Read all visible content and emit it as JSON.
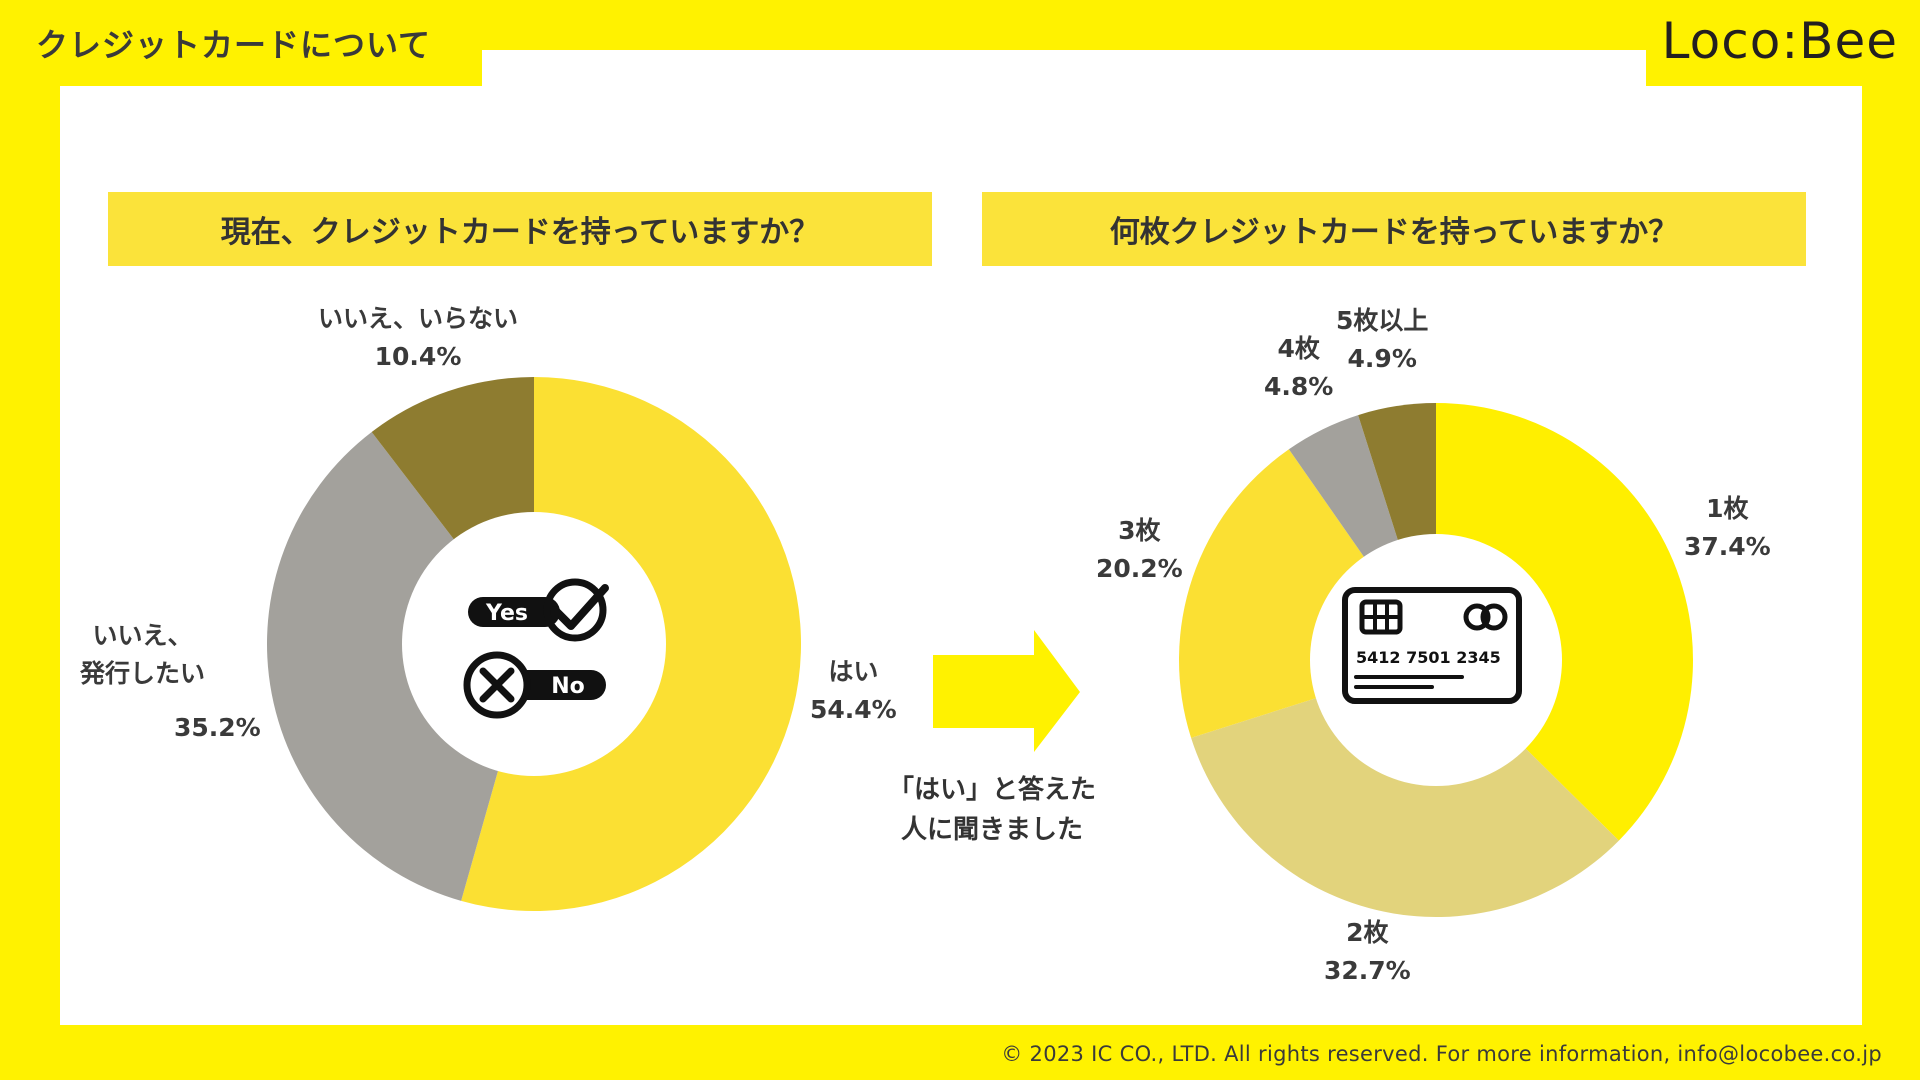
{
  "header": {
    "title": "クレジットカードについて",
    "logo_text": "Loco:Bee"
  },
  "footer": {
    "copyright": "© 2023 IC CO., LTD. All rights reserved. For more information, info@locobee.co.jp"
  },
  "arrow_note": {
    "line1": "「はい」と答えた",
    "line2": "人に聞きました"
  },
  "icons": {
    "yes_text": "Yes",
    "no_text": "No",
    "card_number": "5412  7501  2345"
  },
  "colors": {
    "background": "#FFF200",
    "yes": "#FBE033",
    "no_want": "#A3A19C",
    "no_need": "#8E7C30",
    "one": "#FFEF00",
    "two": "#E2D37C",
    "three": "#FBE033",
    "four": "#A3A19C",
    "five_plus": "#8E7C30"
  },
  "chart_data": [
    {
      "type": "pie",
      "title": "現在、クレジットカードを持っていますか？",
      "series": [
        {
          "label": "はい",
          "value": 54.4,
          "value_label": "54.4%"
        },
        {
          "label": "いいえ、発行したい",
          "label_line1": "いいえ、",
          "label_line2": "発行したい",
          "value": 35.2,
          "value_label": "35.2%"
        },
        {
          "label": "いいえ、いらない",
          "value": 10.4,
          "value_label": "10.4%"
        }
      ]
    },
    {
      "type": "pie",
      "title": "何枚クレジットカードを持っていますか？",
      "series": [
        {
          "label": "1枚",
          "value": 37.4,
          "value_label": "37.4%"
        },
        {
          "label": "2枚",
          "value": 32.7,
          "value_label": "32.7%"
        },
        {
          "label": "3枚",
          "value": 20.2,
          "value_label": "20.2%"
        },
        {
          "label": "4枚",
          "value": 4.8,
          "value_label": "4.8%"
        },
        {
          "label": "5枚以上",
          "value": 4.9,
          "value_label": "4.9%"
        }
      ]
    }
  ]
}
